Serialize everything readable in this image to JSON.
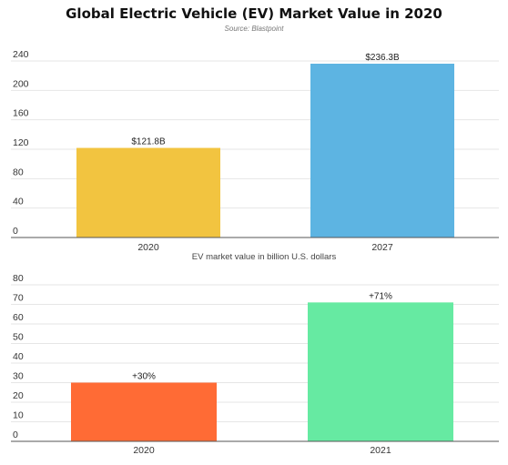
{
  "page": {
    "title": "Global Electric Vehicle (EV) Market Value in 2020",
    "subtitle": "Source: Blastpoint"
  },
  "chart_data": [
    {
      "type": "bar",
      "title": "",
      "categories": [
        "2020",
        "2027"
      ],
      "values": [
        121.8,
        236.3
      ],
      "data_labels": [
        "$121.8B",
        "$236.3B"
      ],
      "colors": [
        "#F2C440",
        "#5DB4E2"
      ],
      "xlabel": "EV market value in billion U.S. dollars",
      "ylabel": "",
      "ylim": [
        0,
        240
      ],
      "yticks": [
        0,
        40,
        80,
        120,
        160,
        200,
        240
      ],
      "grid": true,
      "legend": "none"
    },
    {
      "type": "bar",
      "title": "",
      "categories": [
        "2020",
        "2021"
      ],
      "values": [
        30,
        71
      ],
      "data_labels": [
        "+30%",
        "+71%"
      ],
      "colors": [
        "#FF6B35",
        "#66EAA2"
      ],
      "xlabel": "",
      "ylabel": "",
      "ylim": [
        0,
        80
      ],
      "yticks": [
        0,
        10,
        20,
        30,
        40,
        50,
        60,
        70,
        80
      ],
      "grid": true,
      "legend": "none"
    }
  ]
}
